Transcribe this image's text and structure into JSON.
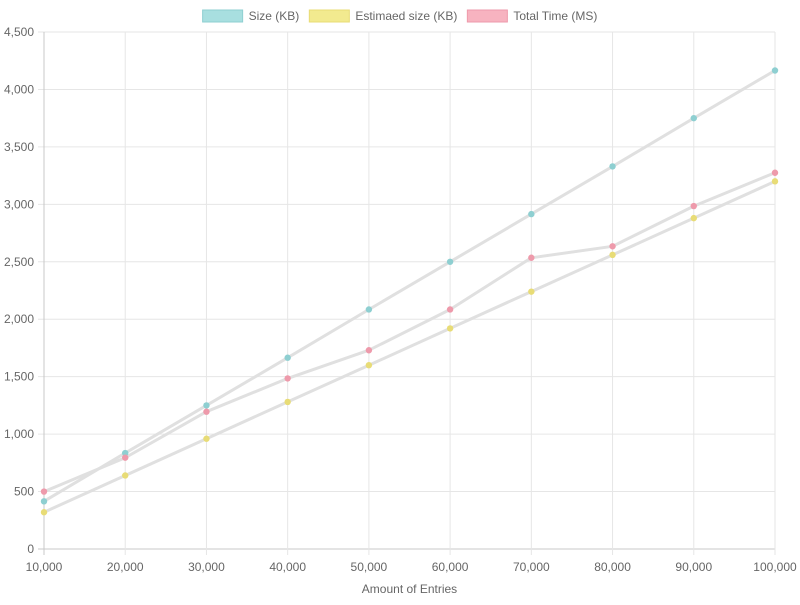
{
  "chart_data": {
    "type": "line",
    "title": "",
    "xlabel": "Amount of Entries",
    "ylabel": "",
    "x": [
      10000,
      20000,
      30000,
      40000,
      50000,
      60000,
      70000,
      80000,
      90000,
      100000
    ],
    "x_tick_labels": [
      "10,000",
      "20,000",
      "30,000",
      "40,000",
      "50,000",
      "60,000",
      "70,000",
      "80,000",
      "90,000",
      "100,000"
    ],
    "ylim": [
      0,
      4500
    ],
    "y_ticks": [
      0,
      500,
      1000,
      1500,
      2000,
      2500,
      3000,
      3500,
      4000,
      4500
    ],
    "y_tick_labels": [
      "0",
      "500",
      "1,000",
      "1,500",
      "2,000",
      "2,500",
      "3,000",
      "3,500",
      "4,000",
      "4,500"
    ],
    "grid": true,
    "legend_position": "top",
    "line_color": "#e0e0e0",
    "series": [
      {
        "name": "Size (KB)",
        "color": "#8ecfd1",
        "legend_fill": "#a8dfe0",
        "values": [
          415,
          835,
          1250,
          1665,
          2085,
          2500,
          2915,
          3330,
          3750,
          4165
        ]
      },
      {
        "name": "Estimaed size (KB)",
        "color": "#e8dc76",
        "legend_fill": "#f2ea8f",
        "values": [
          320,
          640,
          960,
          1280,
          1600,
          1920,
          2240,
          2560,
          2880,
          3200
        ]
      },
      {
        "name": "Total Time (MS)",
        "color": "#ee9aab",
        "legend_fill": "#f7b3c0",
        "values": [
          500,
          795,
          1195,
          1485,
          1730,
          2085,
          2535,
          2635,
          2985,
          3275
        ]
      }
    ]
  }
}
